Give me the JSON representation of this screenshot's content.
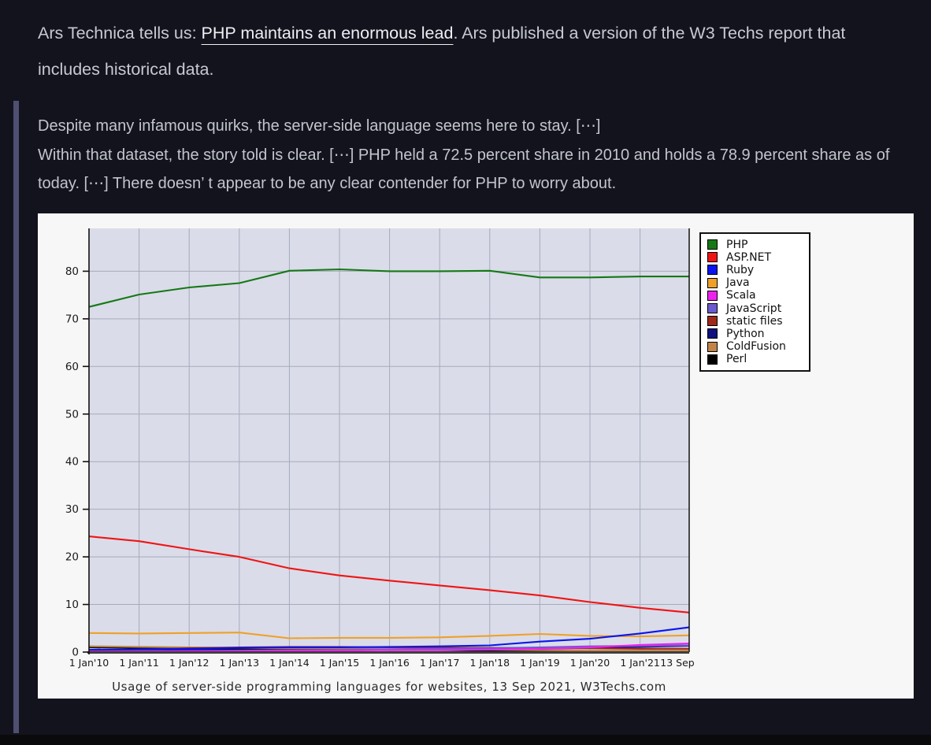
{
  "page": {
    "background_color": "#13131d",
    "text_color": "#c7cad1",
    "quote_bar_color": "#4f4f72"
  },
  "intro": {
    "prefix": "Ars Technica tells us: ",
    "link_text": "PHP maintains an enormous lead",
    "suffix": ". Ars published a version of the W3 Techs report that includes historical data."
  },
  "quote": {
    "line1": "Despite many infamous quirks, the server-side language seems here to stay. [⋯]",
    "line2": "Within that dataset, the story told is clear. [⋯] PHP held a 72.5 percent share in 2010 and holds a 78.9 percent share as of today. [⋯] There doesn’ t appear to be any clear contender for PHP to worry about."
  },
  "chart_data": {
    "type": "line",
    "title": "Usage of server-side programming languages for websites, 13 Sep 2021, W3Techs.com",
    "x_tick_labels": [
      "1 Jan'10",
      "1 Jan'11",
      "1 Jan'12",
      "1 Jan'13",
      "1 Jan'14",
      "1 Jan'15",
      "1 Jan'16",
      "1 Jan'17",
      "1 Jan'18",
      "1 Jan'19",
      "1 Jan'20",
      "1 Jan'21",
      "13 Sep"
    ],
    "y_ticks": [
      0,
      10,
      20,
      30,
      40,
      50,
      60,
      70,
      80
    ],
    "ylim": [
      0,
      89
    ],
    "xlabel": "",
    "ylabel": "",
    "grid": true,
    "legend_position": "top-right",
    "figure_bg": "#f7f7f7",
    "plot_bg": "#dadce9",
    "grid_color": "#a7aabc",
    "axis_color": "#111111",
    "baseline_color": "#3f3f3f",
    "tick_label_color": "#1a1a1a",
    "series": [
      {
        "name": "PHP",
        "color": "#157915",
        "values": [
          72.5,
          75.1,
          76.6,
          77.5,
          80.1,
          80.4,
          80.0,
          80.0,
          80.1,
          78.7,
          78.7,
          78.9,
          78.9
        ]
      },
      {
        "name": "ASP.NET",
        "color": "#f01414",
        "values": [
          24.3,
          23.3,
          21.6,
          20.0,
          17.6,
          16.1,
          15.0,
          14.0,
          13.0,
          11.9,
          10.5,
          9.3,
          8.3
        ]
      },
      {
        "name": "Ruby",
        "color": "#0a14ee",
        "values": [
          0.5,
          0.6,
          0.7,
          0.9,
          1.0,
          1.0,
          1.1,
          1.2,
          1.4,
          2.2,
          2.8,
          3.9,
          5.2
        ]
      },
      {
        "name": "Java",
        "color": "#f0a028",
        "values": [
          4.0,
          3.9,
          4.0,
          4.1,
          2.9,
          3.0,
          3.0,
          3.1,
          3.4,
          3.8,
          3.4,
          3.3,
          3.5
        ]
      },
      {
        "name": "Scala",
        "color": "#ee22ee",
        "values": [
          0.1,
          0.1,
          0.2,
          0.2,
          0.3,
          0.3,
          0.4,
          0.4,
          0.5,
          0.7,
          1.0,
          1.5,
          1.8
        ]
      },
      {
        "name": "JavaScript",
        "color": "#6a5acd",
        "values": [
          0.1,
          0.2,
          0.2,
          0.3,
          0.4,
          0.5,
          0.6,
          0.7,
          0.8,
          1.0,
          1.2,
          1.3,
          1.4
        ]
      },
      {
        "name": "static files",
        "color": "#a02818",
        "values": [
          0.2,
          0.5,
          0.8,
          1.0,
          1.1,
          1.1,
          1.0,
          0.9,
          0.9,
          0.8,
          0.8,
          0.7,
          0.7
        ]
      },
      {
        "name": "Python",
        "color": "#101080",
        "values": [
          0.4,
          0.4,
          0.4,
          0.4,
          0.5,
          0.5,
          0.5,
          0.5,
          0.6,
          0.7,
          0.9,
          1.1,
          1.3
        ]
      },
      {
        "name": "ColdFusion",
        "color": "#c08448",
        "values": [
          1.2,
          1.1,
          1.0,
          0.9,
          0.8,
          0.7,
          0.6,
          0.6,
          0.5,
          0.4,
          0.3,
          0.3,
          0.3
        ]
      },
      {
        "name": "Perl",
        "color": "#000000",
        "values": [
          1.0,
          0.9,
          0.8,
          0.7,
          0.6,
          0.5,
          0.4,
          0.4,
          0.3,
          0.3,
          0.2,
          0.2,
          0.1
        ]
      }
    ]
  }
}
